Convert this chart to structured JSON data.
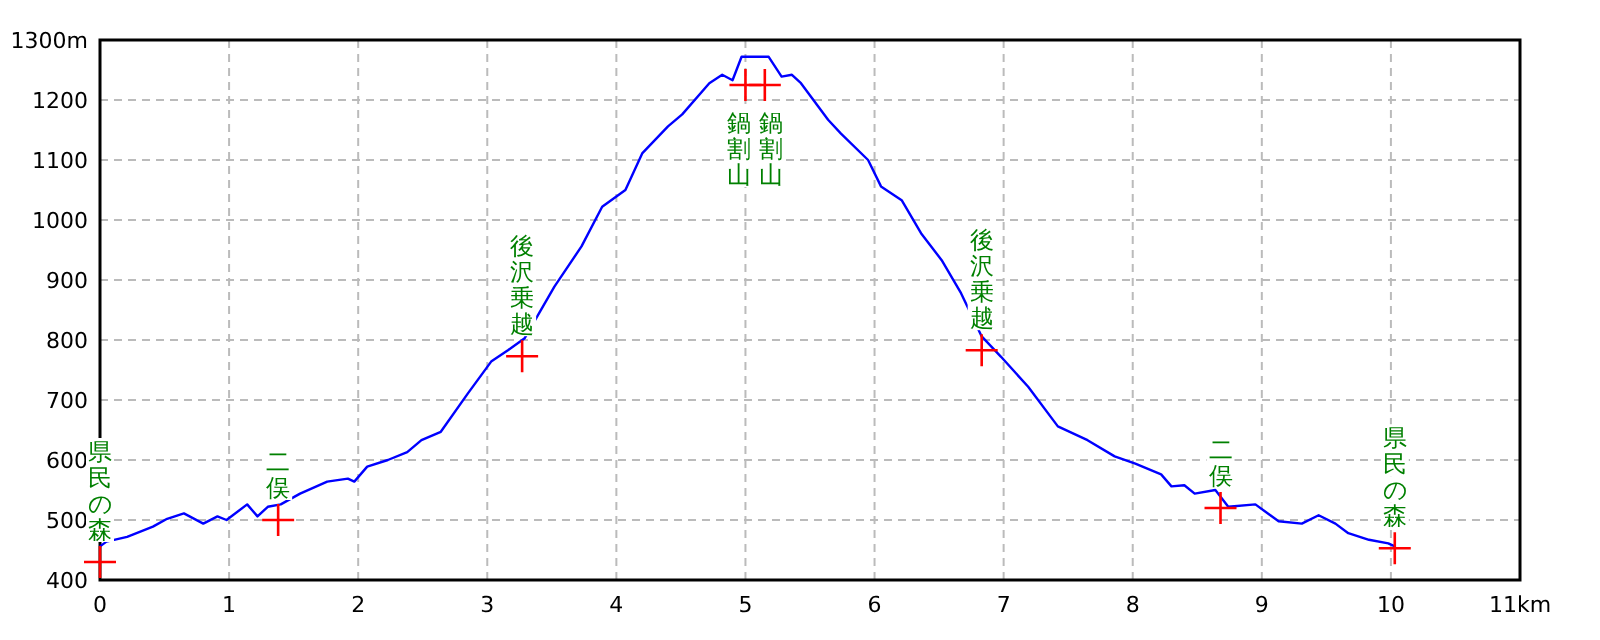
{
  "chart_data": {
    "type": "line",
    "xlim": [
      0,
      11
    ],
    "ylim": [
      400,
      1300
    ],
    "xticks": [
      0,
      1,
      2,
      3,
      4,
      5,
      6,
      7,
      8,
      9,
      10,
      {
        "value": 11,
        "label": "11km"
      }
    ],
    "yticks": [
      400,
      500,
      600,
      700,
      800,
      900,
      1000,
      1100,
      1200,
      {
        "value": 1300,
        "label": "1300m"
      }
    ],
    "grid": true,
    "series": [
      {
        "color": "#0000ff",
        "x": [
          0,
          0.05,
          0.21,
          0.41,
          0.52,
          0.65,
          0.8,
          0.91,
          0.98,
          1.14,
          1.22,
          1.3,
          1.4,
          1.55,
          1.76,
          1.92,
          1.97,
          2.07,
          2.23,
          2.38,
          2.49,
          2.64,
          2.85,
          3.03,
          3.16,
          3.29,
          3.52,
          3.73,
          3.89,
          4.07,
          4.2,
          4.4,
          4.51,
          4.72,
          4.82,
          4.9,
          4.97,
          5.18,
          5.28,
          5.36,
          5.43,
          5.64,
          5.74,
          5.95,
          6.05,
          6.21,
          6.36,
          6.52,
          6.67,
          6.83,
          6.98,
          7.19,
          7.42,
          7.65,
          7.86,
          8.02,
          8.22,
          8.3,
          8.4,
          8.48,
          8.64,
          8.74,
          8.95,
          9.13,
          9.31,
          9.44,
          9.57,
          9.67,
          9.83,
          9.98,
          10.03
        ],
        "values": [
          456,
          464,
          472,
          489,
          502,
          511,
          494,
          506,
          500,
          526,
          506,
          522,
          526,
          544,
          564,
          569,
          564,
          589,
          600,
          613,
          633,
          647,
          711,
          764,
          783,
          803,
          889,
          956,
          1022,
          1050,
          1111,
          1156,
          1176,
          1228,
          1242,
          1233,
          1272,
          1272,
          1239,
          1242,
          1228,
          1167,
          1144,
          1100,
          1056,
          1033,
          978,
          933,
          878,
          806,
          772,
          722,
          656,
          633,
          606,
          594,
          576,
          556,
          558,
          544,
          550,
          522,
          526,
          498,
          494,
          508,
          494,
          478,
          467,
          461,
          456
        ]
      },
      {
        "type": "scatter",
        "color": "#ff0000",
        "marker": "cross",
        "x": [
          0,
          1.38,
          3.27,
          5.0,
          5.15,
          6.83,
          8.68,
          10.03
        ],
        "values": [
          430,
          500,
          773,
          1225,
          1225,
          783,
          520,
          453
        ]
      }
    ],
    "annotations": [
      {
        "text": "県民の森",
        "x": 0,
        "y": 430
      },
      {
        "text": "二俣",
        "x": 1.38,
        "y": 500
      },
      {
        "text": "後沢乗越",
        "x": 3.27,
        "y": 773
      },
      {
        "text": "鍋割山",
        "x": 5.0,
        "y": 1225
      },
      {
        "text": "鍋割山",
        "x": 5.15,
        "y": 1225
      },
      {
        "text": "後沢乗越",
        "x": 6.83,
        "y": 783
      },
      {
        "text": "二俣",
        "x": 8.68,
        "y": 520
      },
      {
        "text": "県民の森",
        "x": 10.03,
        "y": 453
      }
    ]
  }
}
